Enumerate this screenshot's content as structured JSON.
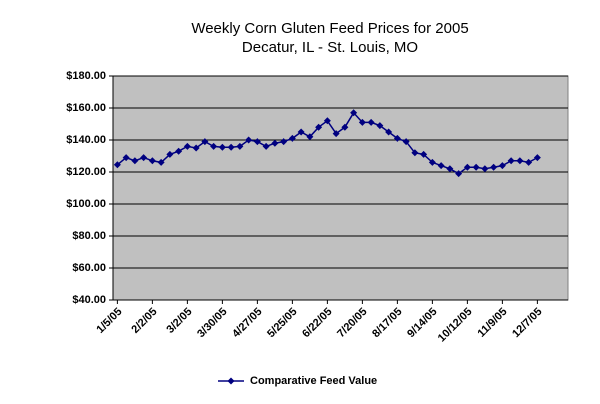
{
  "chart_data": {
    "type": "line",
    "title": "Weekly Corn Gluten Feed Prices for 2005",
    "subtitle": "Decatur, IL - St. Louis, MO",
    "categories": [
      "1/5/05",
      null,
      null,
      null,
      "2/2/05",
      null,
      null,
      null,
      "3/2/05",
      null,
      null,
      null,
      "3/30/05",
      null,
      null,
      null,
      "4/27/05",
      null,
      null,
      null,
      "5/25/05",
      null,
      null,
      null,
      "6/22/05",
      null,
      null,
      null,
      "7/20/05",
      null,
      null,
      null,
      "8/17/05",
      null,
      null,
      null,
      "9/14/05",
      null,
      null,
      null,
      "10/12/05",
      null,
      null,
      null,
      "11/9/05",
      null,
      null,
      null,
      "12/7/05",
      null,
      null,
      null
    ],
    "series": [
      {
        "name": "Comparative Feed Value",
        "color": "#000080",
        "values": [
          124.5,
          129,
          127,
          129,
          127,
          126,
          131,
          133,
          136,
          135,
          139,
          136,
          135.5,
          135.5,
          136,
          140,
          139,
          136,
          138,
          139,
          141,
          145,
          142,
          148,
          152,
          144,
          148,
          157,
          151,
          151,
          149,
          145,
          141,
          139,
          132,
          131,
          126,
          124,
          122,
          119,
          123,
          123,
          122,
          123,
          124,
          127,
          127,
          126,
          129,
          null,
          null,
          null
        ]
      }
    ],
    "ylim": [
      40,
      180
    ],
    "yticks": [
      {
        "value": 40,
        "label": "$40.00"
      },
      {
        "value": 60,
        "label": "$60.00"
      },
      {
        "value": 80,
        "label": "$80.00"
      },
      {
        "value": 100,
        "label": "$100.00"
      },
      {
        "value": 120,
        "label": "$120.00"
      },
      {
        "value": 140,
        "label": "$140.00"
      },
      {
        "value": 160,
        "label": "$160.00"
      },
      {
        "value": 180,
        "label": "$180.00"
      }
    ],
    "grid": true,
    "legend": "bottom",
    "plot_background": "#c0c0c0"
  }
}
